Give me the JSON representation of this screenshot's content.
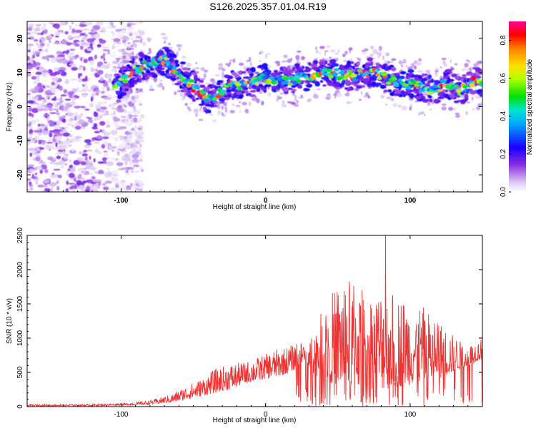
{
  "title": "S126.2025.357.01.04.R19",
  "chart_data": [
    {
      "type": "heatmap",
      "xlabel": "Height of straight line (km)",
      "ylabel": "Frequency (Hz)",
      "xlim": [
        -165,
        150
      ],
      "ylim": [
        -25,
        25
      ],
      "x_ticks": [
        -100,
        0,
        100
      ],
      "x_tick_labels": [
        "-100",
        "0",
        "100"
      ],
      "y_ticks": [
        -20,
        -10,
        0,
        10,
        20
      ],
      "y_tick_labels": [
        "-20",
        "-10",
        "0",
        "10",
        "20"
      ],
      "noise_region_x": [
        -165,
        -95
      ],
      "ridge": {
        "x": [
          -105,
          -100,
          -95,
          -90,
          -85,
          -80,
          -75,
          -70,
          -65,
          -60,
          -55,
          -50,
          -45,
          -40,
          -35,
          -30,
          -25,
          -20,
          -15,
          -10,
          -5,
          0,
          5,
          10,
          15,
          20,
          25,
          30,
          35,
          40,
          45,
          50,
          55,
          60,
          65,
          70,
          75,
          80,
          85,
          90,
          95,
          100,
          105,
          110,
          115,
          120,
          125,
          130,
          135,
          140,
          145,
          150
        ],
        "freq": [
          5,
          7,
          9,
          11,
          12,
          12.5,
          13,
          13.5,
          12,
          10,
          8,
          6,
          4,
          2,
          3,
          5,
          6,
          6.5,
          6.5,
          7,
          8,
          8.5,
          8,
          7.5,
          7.5,
          8,
          8.5,
          9,
          9.5,
          10,
          10,
          9.5,
          9,
          9,
          9.5,
          10,
          10,
          9,
          8,
          7.5,
          7,
          6.5,
          6,
          5.5,
          5,
          5,
          7,
          6,
          4.5,
          6,
          7.5,
          6.5
        ]
      },
      "colorbar": {
        "label": "Normalized spectral amplitude",
        "min": 0.0,
        "max": 0.9,
        "ticks": [
          0.0,
          0.2,
          0.4,
          0.6,
          0.8
        ],
        "tick_labels": [
          "0.0",
          "0.2",
          "0.4",
          "0.6",
          "0.8"
        ]
      }
    },
    {
      "type": "line",
      "xlabel": "Height of straight line (km)",
      "ylabel": "SNR (10 * v/v)",
      "xlim": [
        -165,
        150
      ],
      "ylim": [
        0,
        2500
      ],
      "x_ticks": [
        -100,
        0,
        100
      ],
      "x_tick_labels": [
        "-100",
        "0",
        "100"
      ],
      "y_ticks": [
        0,
        500,
        1000,
        1500,
        2000,
        2500
      ],
      "y_tick_labels": [
        "0",
        "500",
        "1000",
        "1500",
        "2000",
        "2500"
      ],
      "series": [
        {
          "name": "SNR",
          "color": "#ee3333",
          "envelope": {
            "x": [
              -165,
              -120,
              -95,
              -80,
              -65,
              -55,
              -45,
              -35,
              -25,
              -15,
              -5,
              5,
              15,
              25,
              30,
              35,
              40,
              45,
              50,
              55,
              60,
              65,
              70,
              75,
              80,
              85,
              90,
              95,
              100,
              105,
              110,
              115,
              120,
              125,
              130,
              135,
              140,
              145,
              150
            ],
            "low": [
              10,
              10,
              20,
              30,
              60,
              100,
              150,
              200,
              250,
              330,
              380,
              420,
              480,
              600,
              550,
              450,
              400,
              350,
              300,
              300,
              300,
              280,
              260,
              250,
              250,
              260,
              280,
              300,
              320,
              340,
              360,
              380,
              400,
              450,
              500,
              550,
              600,
              650,
              700
            ],
            "high": [
              30,
              35,
              50,
              90,
              180,
              300,
              400,
              550,
              620,
              650,
              720,
              820,
              880,
              950,
              1050,
              1200,
              1450,
              1650,
              1800,
              1900,
              1850,
              1750,
              1700,
              1650,
              1750,
              1700,
              1650,
              1600,
              1550,
              1500,
              1450,
              1350,
              1250,
              1150,
              1050,
              950,
              900,
              950,
              1000
            ]
          },
          "peak": {
            "x": 83,
            "y": 2500
          }
        }
      ]
    }
  ]
}
